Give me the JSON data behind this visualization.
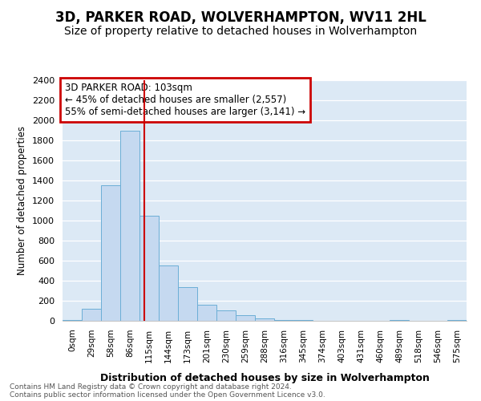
{
  "title": "3D, PARKER ROAD, WOLVERHAMPTON, WV11 2HL",
  "subtitle": "Size of property relative to detached houses in Wolverhampton",
  "xlabel": "Distribution of detached houses by size in Wolverhampton",
  "ylabel": "Number of detached properties",
  "bar_labels": [
    "0sqm",
    "29sqm",
    "58sqm",
    "86sqm",
    "115sqm",
    "144sqm",
    "173sqm",
    "201sqm",
    "230sqm",
    "259sqm",
    "288sqm",
    "316sqm",
    "345sqm",
    "374sqm",
    "403sqm",
    "431sqm",
    "460sqm",
    "489sqm",
    "518sqm",
    "546sqm",
    "575sqm"
  ],
  "bar_values": [
    10,
    120,
    1350,
    1900,
    1050,
    550,
    340,
    160,
    105,
    60,
    28,
    12,
    8,
    0,
    0,
    0,
    0,
    10,
    0,
    0,
    12
  ],
  "bar_color": "#c5d9f0",
  "bar_edge_color": "#6baed6",
  "vline_x": 3.75,
  "vline_color": "#cc0000",
  "annotation_title": "3D PARKER ROAD: 103sqm",
  "annotation_line1": "← 45% of detached houses are smaller (2,557)",
  "annotation_line2": "55% of semi-detached houses are larger (3,141) →",
  "annotation_box_color": "#cc0000",
  "ylim": [
    0,
    2400
  ],
  "yticks": [
    0,
    200,
    400,
    600,
    800,
    1000,
    1200,
    1400,
    1600,
    1800,
    2000,
    2200,
    2400
  ],
  "footer1": "Contains HM Land Registry data © Crown copyright and database right 2024.",
  "footer2": "Contains public sector information licensed under the Open Government Licence v3.0.",
  "bg_color": "#dce9f5",
  "fig_bg_color": "#ffffff",
  "title_fontsize": 12,
  "subtitle_fontsize": 10
}
